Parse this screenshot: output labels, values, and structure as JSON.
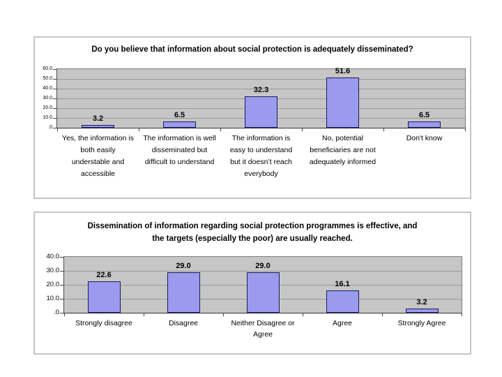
{
  "page": {
    "background": "#ffffff",
    "frame_color": "#c6c6c6"
  },
  "chart_data": [
    {
      "type": "bar",
      "title": "Do you believe that information about social protection is adequately disseminated?",
      "categories": [
        "Yes, the information is both easily understable and accessible",
        "The information is well disseminated but difficult to understand",
        "The information is easy to understand but it doesn’t reach everybody",
        "No, potential beneficiaries are not adequately informed",
        "Don't know"
      ],
      "values": [
        3.2,
        6.5,
        32.3,
        51.6,
        6.5
      ],
      "value_labels": [
        "3.2",
        "6.5",
        "32.3",
        "51.6",
        "6.5"
      ],
      "y_tick_labels": [
        "60.0",
        "50.0",
        "40.0",
        "30.0",
        "20.0",
        "10.0",
        ".0"
      ],
      "ylim": [
        0,
        60
      ],
      "tick_step": 10,
      "xlabel": "",
      "ylabel": "",
      "legend": "none",
      "grid": true,
      "grid_color": "#9a9a9a",
      "plot_bg": "#c6c6c6",
      "bar_color": "#9a9aee",
      "bar_border_color": "#1b1b5a"
    },
    {
      "type": "bar",
      "title": "Dissemination of information regarding social protection programmes is effective, and the targets (especially the poor) are usually reached.",
      "categories": [
        "Strongly disagree",
        "Disagree",
        "Neither Disagree or Agree",
        "Agree",
        "Strongly Agree"
      ],
      "values": [
        22.6,
        29.0,
        29.0,
        16.1,
        3.2
      ],
      "value_labels": [
        "22.6",
        "29.0",
        "29.0",
        "16.1",
        "3.2"
      ],
      "y_tick_labels": [
        "40.0",
        "30.0",
        "20.0",
        "10.0",
        ".0"
      ],
      "ylim": [
        0,
        40
      ],
      "tick_step": 10,
      "xlabel": "",
      "ylabel": "",
      "legend": "none",
      "grid": true,
      "grid_color": "#9a9a9a",
      "plot_bg": "#c6c6c6",
      "bar_color": "#9a9aee",
      "bar_border_color": "#1b1b5a"
    }
  ]
}
